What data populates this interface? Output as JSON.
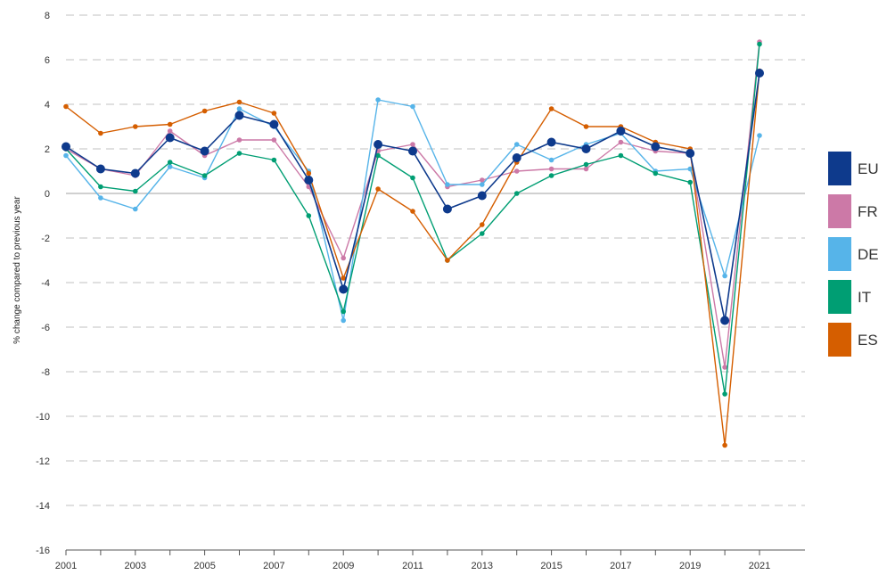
{
  "chart_data": {
    "type": "line",
    "title": "",
    "xlabel": "",
    "ylabel": "% change compared to previous year",
    "ylim": [
      -16,
      8
    ],
    "yticks": [
      -16,
      -14,
      -12,
      -10,
      -8,
      -6,
      -4,
      -2,
      0,
      2,
      4,
      6,
      8
    ],
    "xlim": [
      2001,
      2022.5
    ],
    "xtick_labels": [
      "2001",
      "2003",
      "2005",
      "2007",
      "2009",
      "2011",
      "2013",
      "2015",
      "2017",
      "2019",
      "2021"
    ],
    "x": [
      2001,
      2002,
      2003,
      2004,
      2005,
      2006,
      2007,
      2008,
      2009,
      2010,
      2011,
      2012,
      2013,
      2014,
      2015,
      2016,
      2017,
      2018,
      2019,
      2020,
      2021
    ],
    "grid": "horizontal dashed",
    "legend_position": "right",
    "series": [
      {
        "name": "EU",
        "color": "#0e3a8c",
        "emphasis": true,
        "values": [
          2.1,
          1.1,
          0.9,
          2.5,
          1.9,
          3.5,
          3.1,
          0.6,
          -4.3,
          2.2,
          1.9,
          -0.7,
          -0.1,
          1.6,
          2.3,
          2.0,
          2.8,
          2.1,
          1.8,
          -5.7,
          5.4
        ]
      },
      {
        "name": "FR",
        "color": "#cc79a7",
        "emphasis": false,
        "values": [
          2.0,
          1.1,
          0.8,
          2.8,
          1.7,
          2.4,
          2.4,
          0.3,
          -2.9,
          1.9,
          2.2,
          0.3,
          0.6,
          1.0,
          1.1,
          1.1,
          2.3,
          1.9,
          1.8,
          -7.8,
          6.8
        ]
      },
      {
        "name": "DE",
        "color": "#56b4e9",
        "emphasis": false,
        "values": [
          1.7,
          -0.2,
          -0.7,
          1.2,
          0.7,
          3.8,
          3.0,
          1.0,
          -5.7,
          4.2,
          3.9,
          0.4,
          0.4,
          2.2,
          1.5,
          2.2,
          2.7,
          1.0,
          1.1,
          -3.7,
          2.6
        ]
      },
      {
        "name": "IT",
        "color": "#009e73",
        "emphasis": false,
        "values": [
          2.0,
          0.3,
          0.1,
          1.4,
          0.8,
          1.8,
          1.5,
          -1.0,
          -5.3,
          1.7,
          0.7,
          -3.0,
          -1.8,
          0.0,
          0.8,
          1.3,
          1.7,
          0.9,
          0.5,
          -9.0,
          6.7
        ]
      },
      {
        "name": "ES",
        "color": "#d55e00",
        "emphasis": false,
        "values": [
          3.9,
          2.7,
          3.0,
          3.1,
          3.7,
          4.1,
          3.6,
          0.9,
          -3.8,
          0.2,
          -0.8,
          -3.0,
          -1.4,
          1.4,
          3.8,
          3.0,
          3.0,
          2.3,
          2.0,
          -11.3,
          5.5
        ]
      }
    ]
  }
}
